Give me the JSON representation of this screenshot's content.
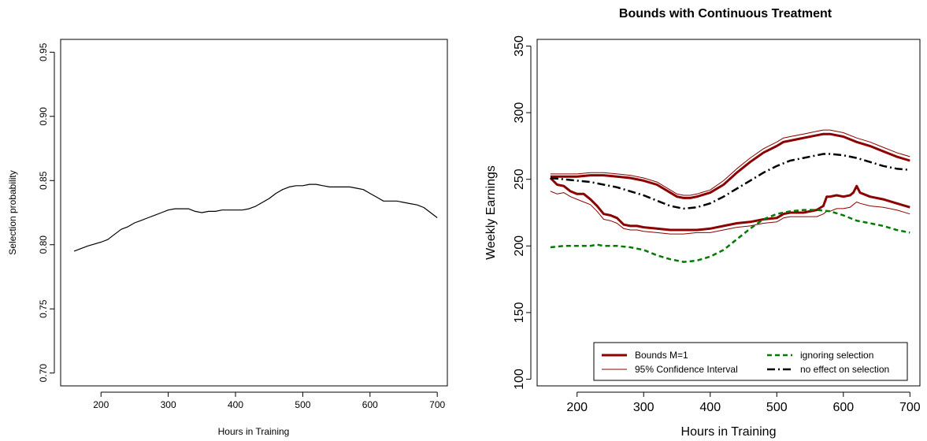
{
  "chart_data": [
    {
      "type": "line",
      "title": "",
      "xlabel": "Hours in Training",
      "ylabel": "Selection probability",
      "xlim": [
        140,
        715
      ],
      "ylim": [
        0.69,
        0.96
      ],
      "xticks": [
        200,
        300,
        400,
        500,
        600,
        700
      ],
      "yticks": [
        0.7,
        0.75,
        0.8,
        0.85,
        0.9,
        0.95
      ],
      "ytick_labels": [
        "0.70",
        "0.75",
        "0.80",
        "0.85",
        "0.90",
        "0.95"
      ],
      "grid": false,
      "series": [
        {
          "color": "#000000",
          "style": "solid",
          "x": [
            160,
            180,
            200,
            210,
            220,
            230,
            240,
            250,
            260,
            270,
            280,
            290,
            300,
            310,
            320,
            330,
            340,
            350,
            360,
            370,
            380,
            390,
            400,
            410,
            420,
            430,
            440,
            450,
            460,
            470,
            480,
            490,
            500,
            510,
            520,
            530,
            540,
            550,
            560,
            570,
            580,
            590,
            600,
            610,
            620,
            630,
            640,
            650,
            660,
            670,
            680,
            690,
            700
          ],
          "y": [
            0.795,
            0.799,
            0.802,
            0.804,
            0.808,
            0.812,
            0.814,
            0.817,
            0.819,
            0.821,
            0.823,
            0.825,
            0.827,
            0.828,
            0.828,
            0.828,
            0.826,
            0.825,
            0.826,
            0.826,
            0.827,
            0.827,
            0.827,
            0.827,
            0.828,
            0.83,
            0.833,
            0.836,
            0.84,
            0.843,
            0.845,
            0.846,
            0.846,
            0.847,
            0.847,
            0.846,
            0.845,
            0.845,
            0.845,
            0.845,
            0.844,
            0.843,
            0.84,
            0.837,
            0.834,
            0.834,
            0.834,
            0.833,
            0.832,
            0.831,
            0.829,
            0.825,
            0.821
          ]
        }
      ]
    },
    {
      "type": "line",
      "title": "Bounds with Continuous Treatment",
      "xlabel": "Hours in Training",
      "ylabel": "Weekly Earnings",
      "xlim": [
        140,
        715
      ],
      "ylim": [
        95,
        355
      ],
      "xticks": [
        200,
        300,
        400,
        500,
        600,
        700
      ],
      "yticks": [
        100,
        150,
        200,
        250,
        300,
        350
      ],
      "ytick_labels": [
        "100",
        "150",
        "200",
        "250",
        "300",
        "350"
      ],
      "grid": false,
      "legend_position": "bottom-right",
      "series": [
        {
          "name": "Bounds M=1",
          "color": "#8b0000",
          "style": "solid-thick",
          "part": "upper",
          "x": [
            160,
            180,
            200,
            220,
            240,
            260,
            280,
            300,
            320,
            340,
            350,
            360,
            370,
            380,
            400,
            420,
            440,
            460,
            480,
            500,
            510,
            520,
            540,
            560,
            570,
            580,
            600,
            620,
            640,
            660,
            680,
            700
          ],
          "y": [
            252,
            252,
            252,
            253,
            253,
            252,
            251,
            249,
            246,
            240,
            237,
            236,
            236,
            237,
            240,
            246,
            255,
            263,
            270,
            275,
            278,
            279,
            281,
            283,
            284,
            284,
            282,
            278,
            275,
            271,
            267,
            264
          ]
        },
        {
          "name": "Bounds M=1",
          "color": "#8b0000",
          "style": "solid-thick",
          "part": "lower",
          "x": [
            160,
            170,
            180,
            190,
            200,
            210,
            220,
            230,
            240,
            250,
            260,
            270,
            280,
            290,
            300,
            320,
            340,
            360,
            380,
            400,
            420,
            440,
            460,
            480,
            500,
            510,
            520,
            540,
            560,
            570,
            575,
            580,
            590,
            600,
            610,
            615,
            620,
            625,
            640,
            660,
            680,
            700
          ],
          "y": [
            251,
            246,
            245,
            241,
            239,
            239,
            235,
            230,
            224,
            223,
            221,
            216,
            215,
            215,
            214,
            213,
            212,
            212,
            212,
            213,
            215,
            217,
            218,
            220,
            221,
            224,
            225,
            225,
            227,
            230,
            237,
            237,
            238,
            237,
            238,
            240,
            245,
            240,
            237,
            235,
            232,
            229
          ]
        },
        {
          "name": "95% Confidence Interval",
          "color": "#8b0000",
          "style": "solid-thin",
          "part": "upper",
          "x": [
            160,
            180,
            200,
            220,
            240,
            260,
            280,
            300,
            320,
            340,
            350,
            360,
            370,
            380,
            400,
            420,
            440,
            460,
            480,
            500,
            510,
            520,
            540,
            560,
            570,
            580,
            600,
            620,
            640,
            660,
            680,
            700
          ],
          "y": [
            254,
            254,
            254,
            255,
            255,
            254,
            253,
            251,
            248,
            242,
            239,
            238,
            238,
            239,
            242,
            249,
            258,
            266,
            273,
            278,
            281,
            282,
            284,
            286,
            287,
            287,
            285,
            281,
            278,
            274,
            270,
            267
          ]
        },
        {
          "name": "95% Confidence Interval",
          "color": "#8b0000",
          "style": "solid-thin",
          "part": "lower",
          "x": [
            160,
            170,
            180,
            190,
            200,
            210,
            220,
            230,
            240,
            250,
            260,
            270,
            280,
            290,
            300,
            320,
            340,
            360,
            380,
            400,
            420,
            440,
            460,
            480,
            500,
            510,
            520,
            540,
            560,
            570,
            575,
            580,
            590,
            600,
            610,
            615,
            620,
            625,
            640,
            660,
            680,
            700
          ],
          "y": [
            241,
            239,
            240,
            237,
            235,
            233,
            231,
            226,
            220,
            219,
            217,
            213,
            212,
            212,
            211,
            210,
            209,
            209,
            210,
            210,
            212,
            214,
            215,
            217,
            218,
            221,
            222,
            222,
            222,
            224,
            226,
            226,
            228,
            228,
            229,
            231,
            233,
            232,
            230,
            229,
            227,
            224
          ]
        },
        {
          "name": "ignoring selection",
          "color": "#007a00",
          "style": "dashed",
          "x": [
            160,
            180,
            200,
            220,
            230,
            240,
            260,
            280,
            300,
            320,
            340,
            360,
            380,
            400,
            420,
            440,
            460,
            480,
            500,
            520,
            540,
            560,
            580,
            600,
            620,
            640,
            660,
            680,
            700
          ],
          "y": [
            199,
            200,
            200,
            200,
            201,
            200,
            200,
            199,
            197,
            193,
            190,
            188,
            189,
            192,
            197,
            205,
            213,
            220,
            224,
            226,
            227,
            227,
            226,
            223,
            219,
            217,
            215,
            212,
            210
          ]
        },
        {
          "name": "no effect on selection",
          "color": "#000000",
          "style": "dashdot",
          "x": [
            160,
            180,
            200,
            220,
            240,
            260,
            280,
            300,
            320,
            340,
            360,
            380,
            400,
            420,
            440,
            460,
            480,
            500,
            520,
            540,
            560,
            570,
            580,
            600,
            620,
            640,
            660,
            680,
            700
          ],
          "y": [
            251,
            250,
            249,
            248,
            246,
            244,
            241,
            238,
            234,
            230,
            228,
            229,
            232,
            237,
            243,
            249,
            255,
            260,
            264,
            266,
            268,
            269,
            269,
            268,
            266,
            263,
            260,
            258,
            257
          ]
        }
      ],
      "legend": [
        {
          "label": "Bounds M=1",
          "color": "#8b0000",
          "style": "solid-thick"
        },
        {
          "label": "95% Confidence Interval",
          "color": "#8b0000",
          "style": "solid-thin"
        },
        {
          "label": "ignoring selection",
          "color": "#007a00",
          "style": "dashed"
        },
        {
          "label": "no effect on selection",
          "color": "#000000",
          "style": "dashdot"
        }
      ]
    }
  ]
}
